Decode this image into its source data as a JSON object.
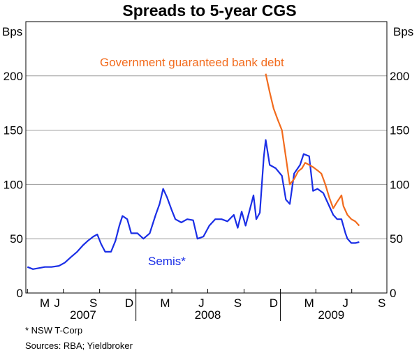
{
  "chart_data": {
    "type": "line",
    "title": "Spreads to 5-year CGS",
    "y_unit_left": "Bps",
    "y_unit_right": "Bps",
    "ylim": [
      0,
      250
    ],
    "y_ticks": [
      0,
      50,
      100,
      150,
      200
    ],
    "grid": true,
    "x_month_labels": [
      "M",
      "J",
      "S",
      "D",
      "M",
      "J",
      "S",
      "D",
      "M",
      "J",
      "S"
    ],
    "x_month_dates": [
      "2007-05",
      "2007-06",
      "2007-09",
      "2007-12",
      "2008-03",
      "2008-06",
      "2008-09",
      "2008-12",
      "2009-03",
      "2009-06",
      "2009-09"
    ],
    "x_year_labels": [
      "2007",
      "2008",
      "2009"
    ],
    "series": [
      {
        "name": "Semis*",
        "color": "#1a2ee6",
        "points": [
          [
            "2007-04-01",
            24
          ],
          [
            "2007-04-15",
            22
          ],
          [
            "2007-05-01",
            23
          ],
          [
            "2007-05-15",
            24
          ],
          [
            "2007-06-01",
            24
          ],
          [
            "2007-06-20",
            25
          ],
          [
            "2007-07-05",
            28
          ],
          [
            "2007-07-20",
            33
          ],
          [
            "2007-08-05",
            38
          ],
          [
            "2007-08-20",
            44
          ],
          [
            "2007-09-01",
            48
          ],
          [
            "2007-09-15",
            52
          ],
          [
            "2007-09-25",
            54
          ],
          [
            "2007-10-05",
            45
          ],
          [
            "2007-10-15",
            38
          ],
          [
            "2007-10-30",
            38
          ],
          [
            "2007-11-10",
            48
          ],
          [
            "2007-11-20",
            62
          ],
          [
            "2007-11-28",
            71
          ],
          [
            "2007-12-10",
            68
          ],
          [
            "2007-12-20",
            55
          ],
          [
            "2008-01-05",
            55
          ],
          [
            "2008-01-20",
            50
          ],
          [
            "2008-02-05",
            55
          ],
          [
            "2008-02-20",
            72
          ],
          [
            "2008-03-01",
            82
          ],
          [
            "2008-03-10",
            96
          ],
          [
            "2008-03-20",
            88
          ],
          [
            "2008-04-01",
            76
          ],
          [
            "2008-04-10",
            68
          ],
          [
            "2008-04-25",
            65
          ],
          [
            "2008-05-10",
            68
          ],
          [
            "2008-05-25",
            67
          ],
          [
            "2008-06-05",
            50
          ],
          [
            "2008-06-20",
            52
          ],
          [
            "2008-07-05",
            62
          ],
          [
            "2008-07-20",
            68
          ],
          [
            "2008-08-05",
            68
          ],
          [
            "2008-08-20",
            66
          ],
          [
            "2008-09-05",
            72
          ],
          [
            "2008-09-15",
            60
          ],
          [
            "2008-09-25",
            75
          ],
          [
            "2008-10-05",
            62
          ],
          [
            "2008-10-15",
            76
          ],
          [
            "2008-10-25",
            90
          ],
          [
            "2008-11-01",
            68
          ],
          [
            "2008-11-10",
            74
          ],
          [
            "2008-11-20",
            125
          ],
          [
            "2008-11-25",
            141
          ],
          [
            "2008-12-05",
            118
          ],
          [
            "2008-12-20",
            115
          ],
          [
            "2009-01-05",
            108
          ],
          [
            "2009-01-15",
            86
          ],
          [
            "2009-01-25",
            82
          ],
          [
            "2009-02-05",
            110
          ],
          [
            "2009-02-20",
            118
          ],
          [
            "2009-03-01",
            128
          ],
          [
            "2009-03-15",
            126
          ],
          [
            "2009-03-25",
            94
          ],
          [
            "2009-04-05",
            96
          ],
          [
            "2009-04-20",
            92
          ],
          [
            "2009-05-05",
            80
          ],
          [
            "2009-05-15",
            72
          ],
          [
            "2009-05-25",
            68
          ],
          [
            "2009-06-05",
            68
          ],
          [
            "2009-06-15",
            55
          ],
          [
            "2009-06-20",
            50
          ],
          [
            "2009-06-30",
            46
          ],
          [
            "2009-07-10",
            46
          ],
          [
            "2009-07-20",
            47
          ]
        ]
      },
      {
        "name": "Government guaranteed bank debt",
        "color": "#f26b1d",
        "points": [
          [
            "2008-11-25",
            202
          ],
          [
            "2008-12-05",
            185
          ],
          [
            "2008-12-15",
            170
          ],
          [
            "2008-12-25",
            160
          ],
          [
            "2009-01-05",
            150
          ],
          [
            "2009-01-15",
            125
          ],
          [
            "2009-01-25",
            100
          ],
          [
            "2009-02-05",
            105
          ],
          [
            "2009-02-15",
            112
          ],
          [
            "2009-02-25",
            115
          ],
          [
            "2009-03-05",
            120
          ],
          [
            "2009-03-15",
            118
          ],
          [
            "2009-03-25",
            116
          ],
          [
            "2009-04-05",
            113
          ],
          [
            "2009-04-15",
            110
          ],
          [
            "2009-04-25",
            100
          ],
          [
            "2009-05-05",
            88
          ],
          [
            "2009-05-15",
            78
          ],
          [
            "2009-05-25",
            84
          ],
          [
            "2009-06-05",
            90
          ],
          [
            "2009-06-10",
            80
          ],
          [
            "2009-06-20",
            72
          ],
          [
            "2009-06-30",
            68
          ],
          [
            "2009-07-10",
            66
          ],
          [
            "2009-07-20",
            62
          ]
        ]
      }
    ],
    "annotations": [
      {
        "text": "Government guaranteed bank debt",
        "series": 1
      },
      {
        "text": "Semis*",
        "series": 0
      }
    ]
  },
  "footnotes": [
    "* NSW T-Corp",
    "Sources: RBA; Yieldbroker"
  ]
}
